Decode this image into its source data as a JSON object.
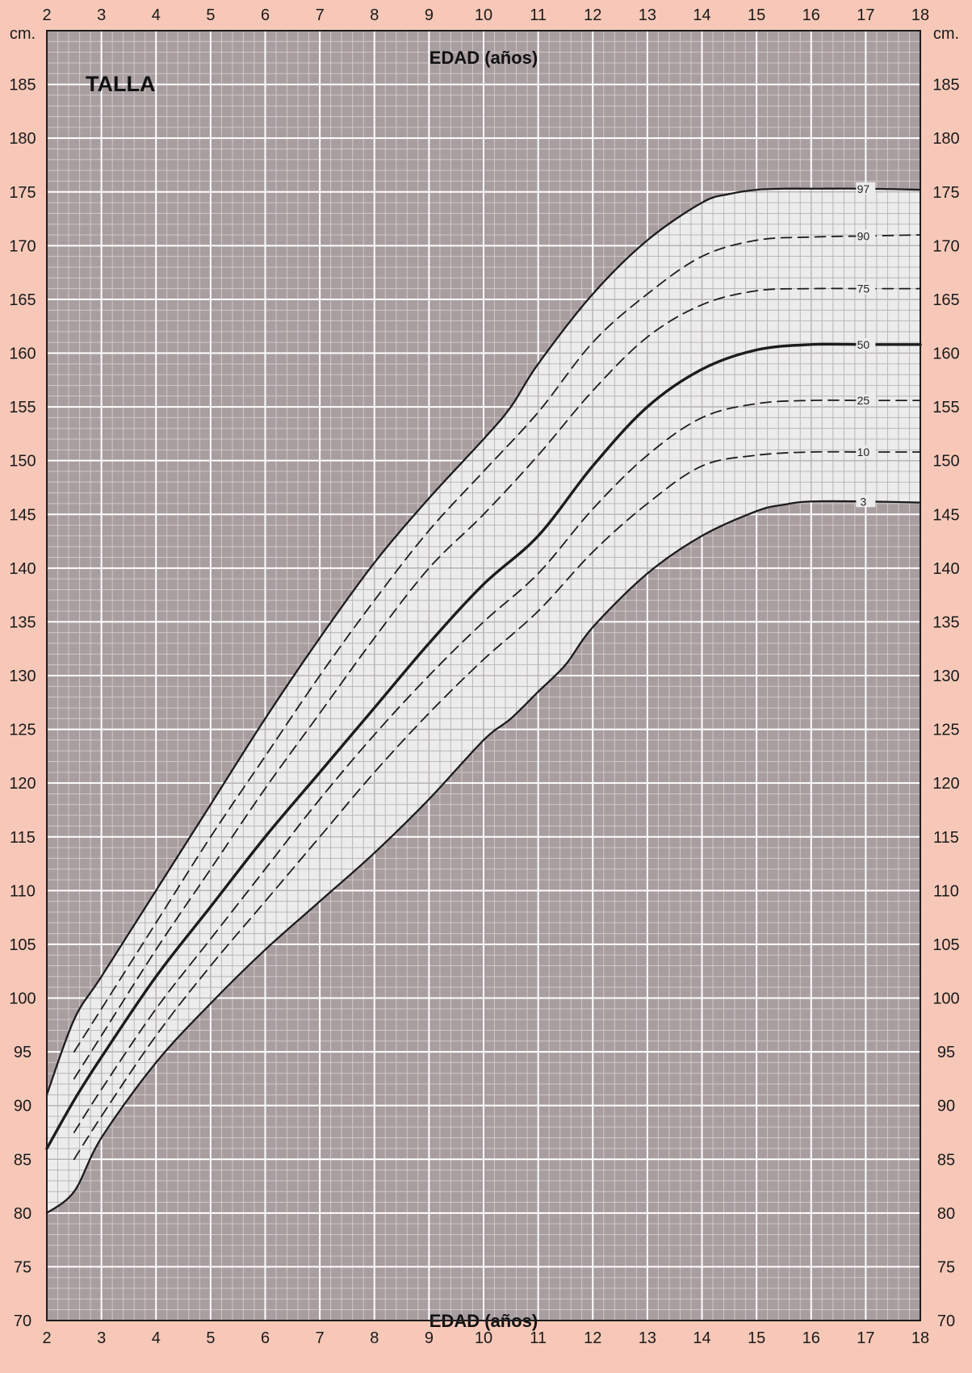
{
  "chart_data": {
    "type": "line",
    "title": "TALLA",
    "xlabel": "EDAD (años)",
    "ylabel": "cm.",
    "xlim": [
      2,
      18
    ],
    "ylim": [
      70,
      190
    ],
    "x_ticks": [
      2,
      3,
      4,
      5,
      6,
      7,
      8,
      9,
      10,
      11,
      12,
      13,
      14,
      15,
      16,
      17,
      18
    ],
    "y_ticks": [
      70,
      75,
      80,
      85,
      90,
      95,
      100,
      105,
      110,
      115,
      120,
      125,
      130,
      135,
      140,
      145,
      150,
      155,
      160,
      165,
      170,
      175,
      180,
      185
    ],
    "grid": true,
    "colors": {
      "page": "#f7c8b8",
      "plot_background": "#a89d9f",
      "band": "#ececec",
      "grid_major": "#ffffff",
      "grid_minor": "#cfc8ca",
      "band_grid": "#b8b2b4",
      "line": "#1c1c1c"
    },
    "series": [
      {
        "name": "97",
        "style": "solid",
        "x": [
          2,
          2.5,
          3,
          4,
          5,
          6,
          7,
          8,
          9,
          10,
          10.5,
          11,
          12,
          13,
          14,
          14.5,
          15,
          15.5,
          16,
          17,
          18
        ],
        "y": [
          91,
          98,
          102,
          110,
          118,
          126,
          133.5,
          140.5,
          146.5,
          152,
          155,
          159,
          165.5,
          170.5,
          174,
          174.8,
          175.2,
          175.3,
          175.3,
          175.3,
          175.2
        ]
      },
      {
        "name": "90",
        "style": "dashed",
        "x": [
          2.5,
          3,
          4,
          5,
          6,
          7,
          8,
          9,
          10,
          11,
          12,
          13,
          14,
          15,
          16,
          17,
          18
        ],
        "y": [
          95,
          99,
          107,
          115,
          122.5,
          130,
          137,
          143.5,
          149,
          154.5,
          161,
          165.5,
          169,
          170.5,
          170.8,
          170.9,
          171
        ]
      },
      {
        "name": "75",
        "style": "dashed",
        "x": [
          2.5,
          3,
          4,
          5,
          6,
          7,
          8,
          9,
          10,
          11,
          12,
          13,
          14,
          15,
          16,
          17,
          18
        ],
        "y": [
          92.5,
          96.5,
          104.5,
          112,
          119.5,
          126.5,
          133.5,
          140,
          145,
          150.5,
          156.5,
          161.5,
          164.5,
          165.8,
          166,
          166,
          166
        ]
      },
      {
        "name": "50",
        "style": "solid",
        "x": [
          2,
          2.5,
          3,
          4,
          5,
          6,
          7,
          8,
          9,
          10,
          11,
          12,
          13,
          14,
          15,
          16,
          17,
          18
        ],
        "y": [
          86,
          90.5,
          94.5,
          102,
          108.5,
          115,
          121,
          127,
          133,
          138.5,
          143,
          149.5,
          155,
          158.5,
          160.3,
          160.8,
          160.8,
          160.8
        ]
      },
      {
        "name": "25",
        "style": "dashed",
        "x": [
          2.5,
          3,
          4,
          5,
          6,
          7,
          8,
          9,
          10,
          11,
          12,
          13,
          14,
          15,
          16,
          17,
          18
        ],
        "y": [
          87.5,
          91.5,
          99,
          105.5,
          112,
          118.5,
          124.5,
          130,
          135,
          139.5,
          145.5,
          150.5,
          154,
          155.3,
          155.6,
          155.6,
          155.6
        ]
      },
      {
        "name": "10",
        "style": "dashed",
        "x": [
          2.5,
          3,
          4,
          5,
          6,
          7,
          8,
          9,
          10,
          11,
          12,
          13,
          14,
          15,
          16,
          17,
          18
        ],
        "y": [
          85,
          89,
          96.5,
          103,
          109,
          115,
          121,
          126.5,
          131.5,
          136,
          141.5,
          146,
          149.5,
          150.5,
          150.8,
          150.8,
          150.8
        ]
      },
      {
        "name": "3",
        "style": "solid",
        "x": [
          2,
          2.5,
          3,
          4,
          5,
          6,
          7,
          8,
          9,
          10,
          10.5,
          11,
          11.5,
          12,
          13,
          14,
          15,
          15.5,
          16,
          17,
          18
        ],
        "y": [
          80,
          82,
          87,
          94,
          99.5,
          104.5,
          109,
          113.5,
          118.5,
          124,
          126,
          128.5,
          131,
          134.5,
          139.5,
          143,
          145.3,
          145.9,
          146.2,
          146.2,
          146.1
        ]
      }
    ]
  }
}
